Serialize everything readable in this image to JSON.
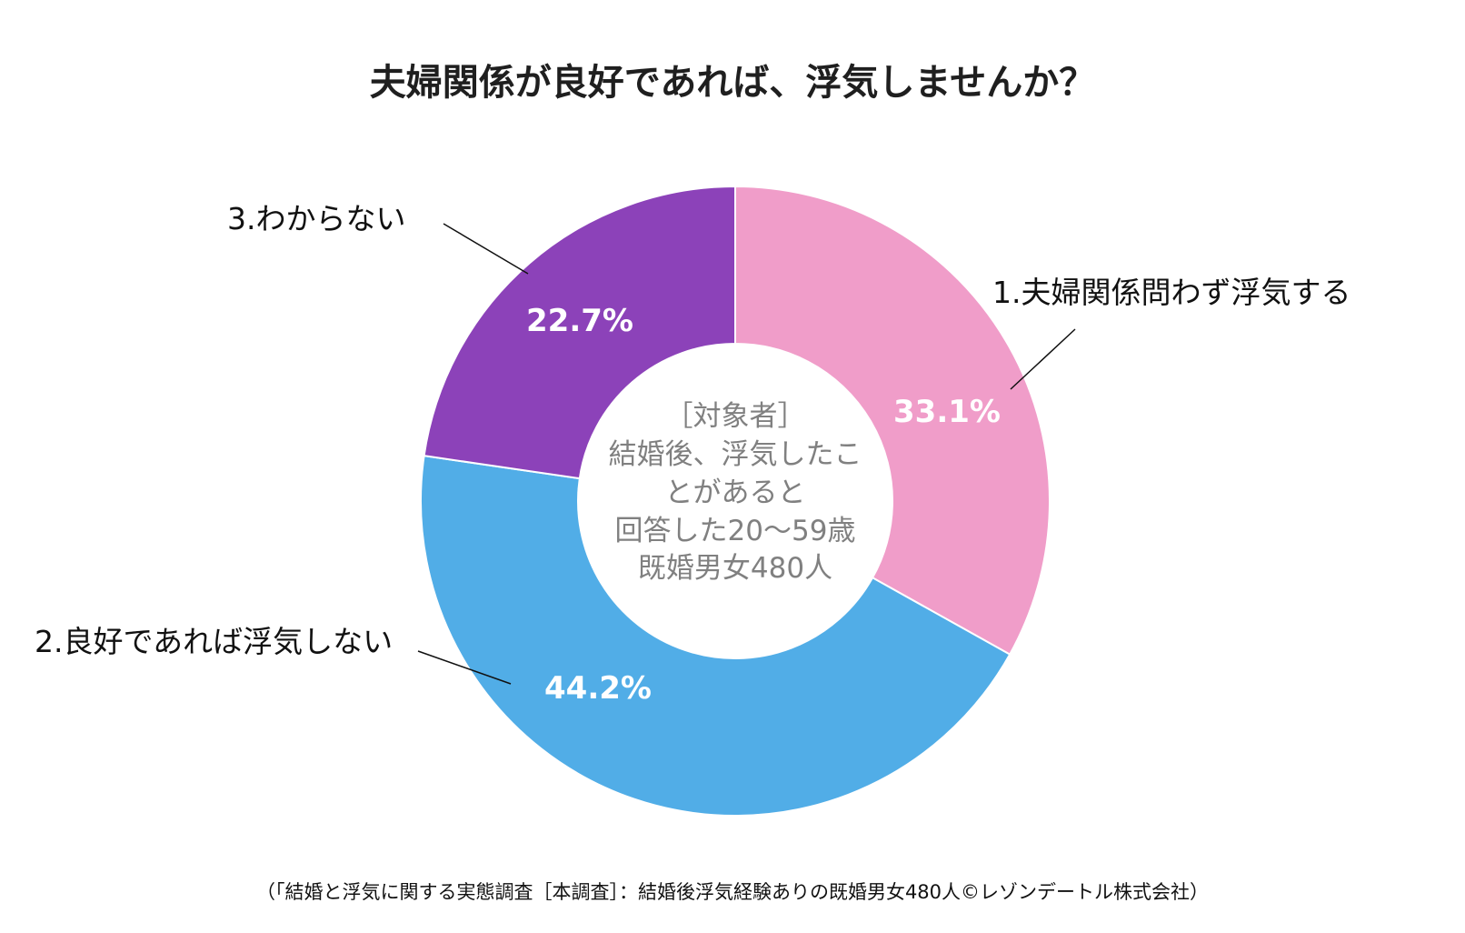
{
  "colors": {
    "slice_1": "#f09dc9",
    "slice_2": "#51ade7",
    "slice_3": "#8c42b9",
    "text": "#1f1f1f",
    "center_text": "#808080",
    "background": "#ffffff"
  },
  "chart_data": {
    "type": "pie",
    "style": "donut",
    "title": "夫婦関係が良好であれば、浮気しませんか？",
    "categories": [
      "1.夫婦関係問わず浮気する",
      "2.良好であれば浮気しない",
      "3.わからない"
    ],
    "values": [
      33.1,
      44.2,
      22.7
    ],
    "value_labels": [
      "33.1%",
      "44.2%",
      "22.7%"
    ],
    "unit": "%",
    "center_text": [
      "［対象者］",
      "結婚後、浮気したこ",
      "とがあると",
      "回答した20～59歳",
      "既婚男女480人"
    ],
    "source": "（「結婚と浮気に関する実態調査［本調査］：結婚後浮気経験ありの既婚男女480人©レゾンデートル株式会社）",
    "legend": "none"
  }
}
